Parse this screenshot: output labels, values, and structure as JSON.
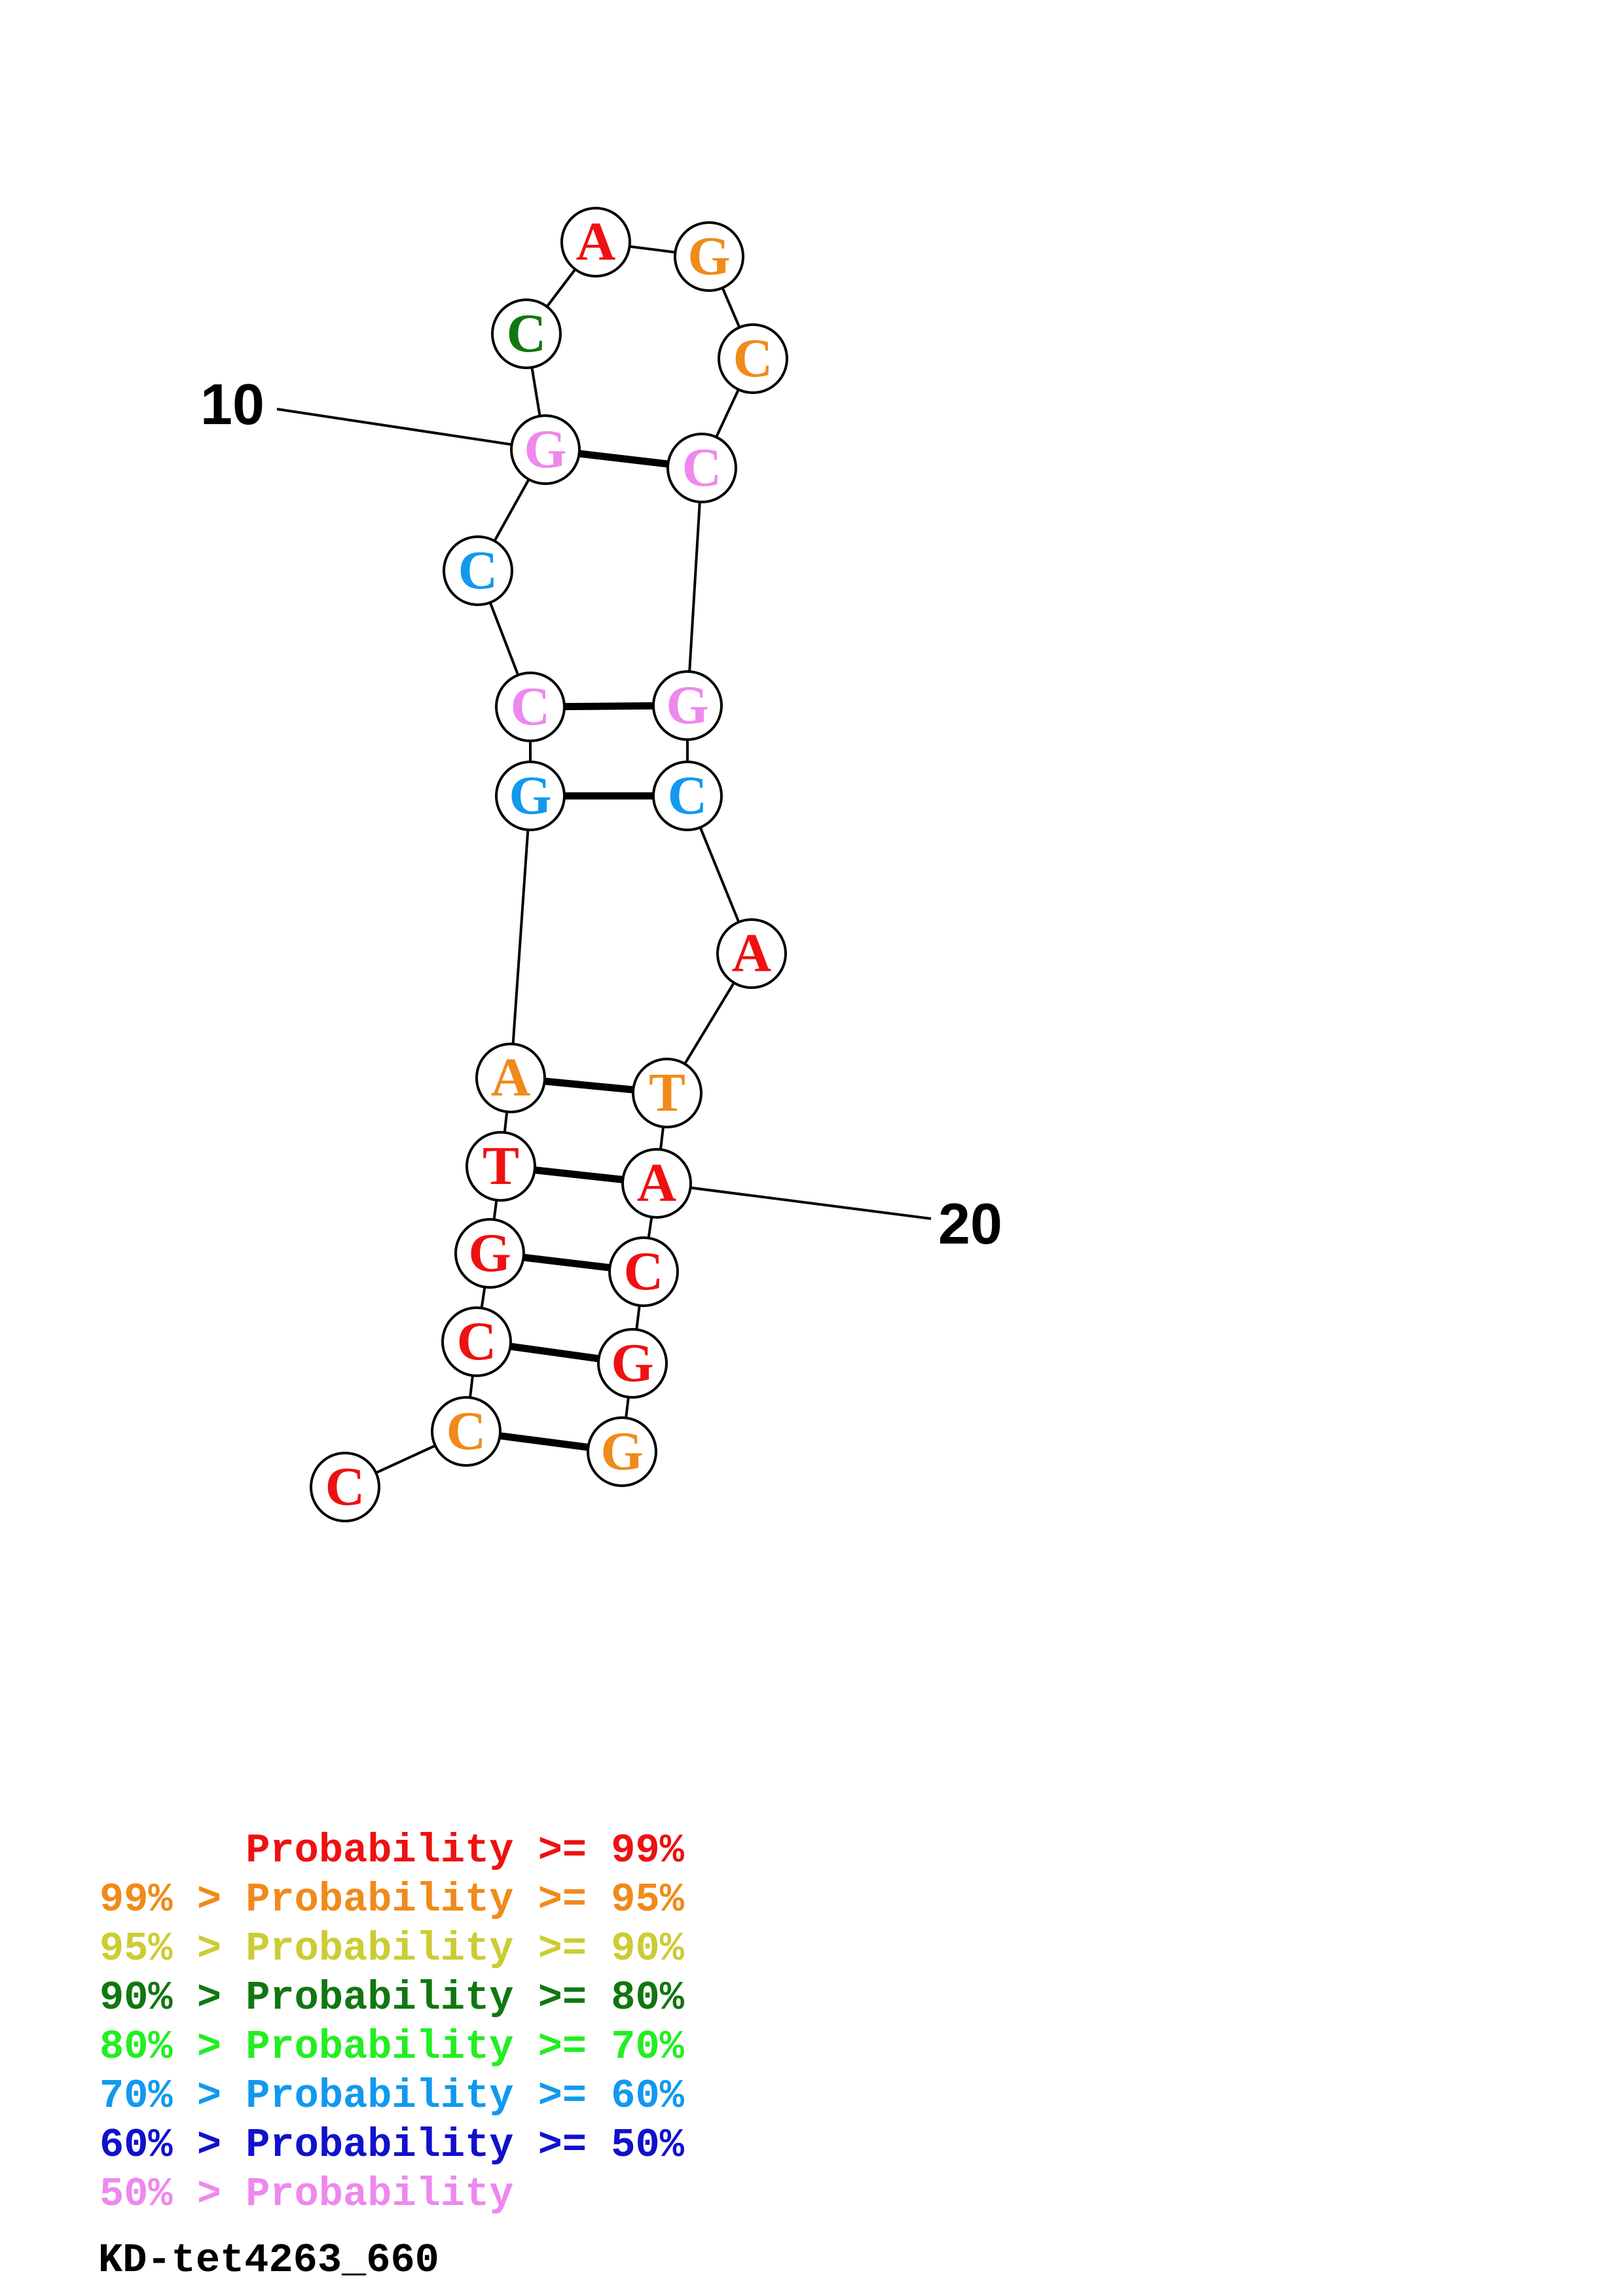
{
  "diagram": {
    "name": "KD-tet4263_660",
    "position_labels": [
      {
        "text": "10",
        "nucleotide": 10
      },
      {
        "text": "20",
        "nucleotide": 20
      }
    ],
    "nucleotides": [
      {
        "index": 1,
        "base": "C",
        "prob_class": 0
      },
      {
        "index": 2,
        "base": "C",
        "prob_class": 1
      },
      {
        "index": 3,
        "base": "C",
        "prob_class": 0
      },
      {
        "index": 4,
        "base": "G",
        "prob_class": 0
      },
      {
        "index": 5,
        "base": "T",
        "prob_class": 0
      },
      {
        "index": 6,
        "base": "A",
        "prob_class": 1
      },
      {
        "index": 7,
        "base": "G",
        "prob_class": 5
      },
      {
        "index": 8,
        "base": "C",
        "prob_class": 7
      },
      {
        "index": 9,
        "base": "C",
        "prob_class": 5
      },
      {
        "index": 10,
        "base": "G",
        "prob_class": 7
      },
      {
        "index": 11,
        "base": "C",
        "prob_class": 3
      },
      {
        "index": 12,
        "base": "A",
        "prob_class": 0
      },
      {
        "index": 13,
        "base": "G",
        "prob_class": 1
      },
      {
        "index": 14,
        "base": "C",
        "prob_class": 1
      },
      {
        "index": 15,
        "base": "C",
        "prob_class": 7
      },
      {
        "index": 16,
        "base": "G",
        "prob_class": 7
      },
      {
        "index": 17,
        "base": "C",
        "prob_class": 5
      },
      {
        "index": 18,
        "base": "A",
        "prob_class": 0
      },
      {
        "index": 19,
        "base": "T",
        "prob_class": 1
      },
      {
        "index": 20,
        "base": "A",
        "prob_class": 0
      },
      {
        "index": 21,
        "base": "C",
        "prob_class": 0
      },
      {
        "index": 22,
        "base": "G",
        "prob_class": 0
      },
      {
        "index": 23,
        "base": "G",
        "prob_class": 1
      }
    ],
    "base_pairs": [
      [
        2,
        23
      ],
      [
        3,
        22
      ],
      [
        4,
        21
      ],
      [
        5,
        20
      ],
      [
        6,
        19
      ],
      [
        7,
        17
      ],
      [
        8,
        16
      ],
      [
        10,
        15
      ]
    ]
  },
  "legend": [
    {
      "left": "",
      "gt": "",
      "word": "Probability",
      "op": ">=",
      "right": "99%",
      "color": "#ee1111"
    },
    {
      "left": "99%",
      "gt": ">",
      "word": "Probability",
      "op": ">=",
      "right": "95%",
      "color": "#f08a1a"
    },
    {
      "left": "95%",
      "gt": ">",
      "word": "Probability",
      "op": ">=",
      "right": "90%",
      "color": "#cccc33"
    },
    {
      "left": "90%",
      "gt": ">",
      "word": "Probability",
      "op": ">=",
      "right": "80%",
      "color": "#117711"
    },
    {
      "left": "80%",
      "gt": ">",
      "word": "Probability",
      "op": ">=",
      "right": "70%",
      "color": "#22ee22"
    },
    {
      "left": "70%",
      "gt": ">",
      "word": "Probability",
      "op": ">=",
      "right": "60%",
      "color": "#1199ee"
    },
    {
      "left": "60%",
      "gt": ">",
      "word": "Probability",
      "op": ">=",
      "right": "50%",
      "color": "#1111cc"
    },
    {
      "left": "50%",
      "gt": ">",
      "word": "Probability",
      "op": "",
      "right": "",
      "color": "#ee88ee"
    }
  ]
}
